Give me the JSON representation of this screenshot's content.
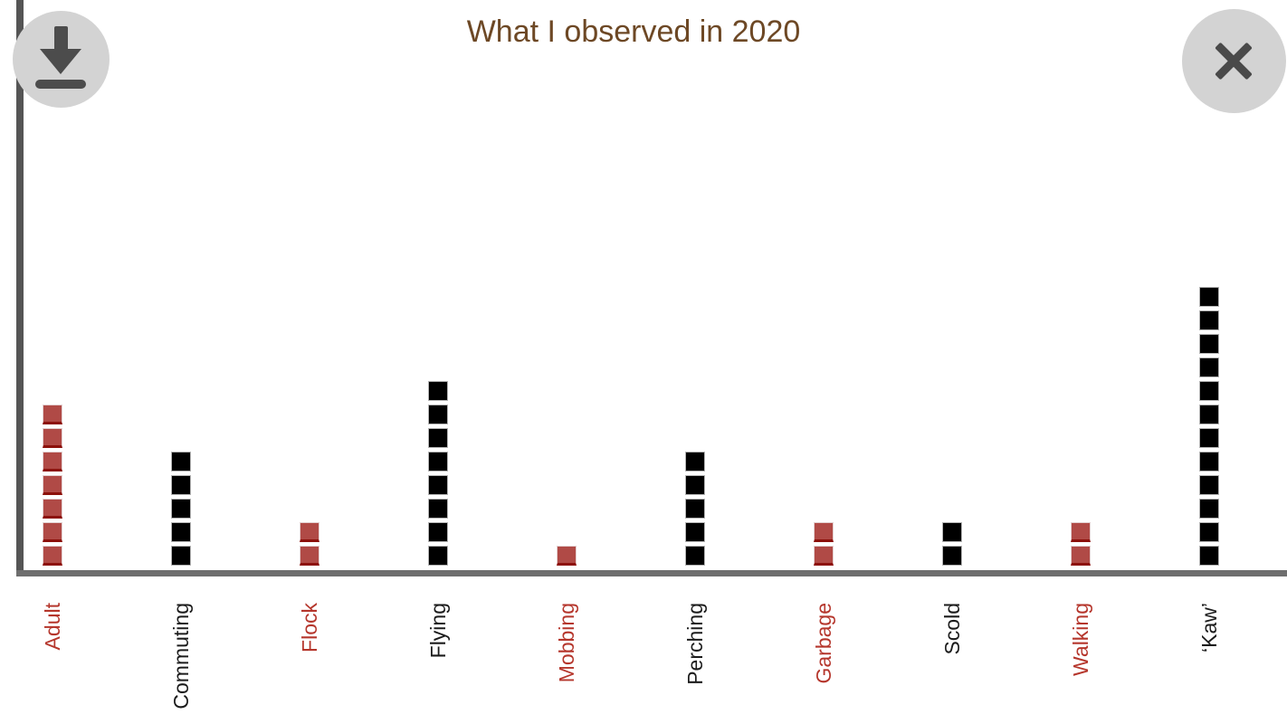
{
  "window": {
    "background": "#ffffff"
  },
  "buttons": {
    "download": {
      "icon": "download-icon",
      "circle_color": "#d3d3d3",
      "glyph_color": "#4c4c4c"
    },
    "close": {
      "icon": "close-icon",
      "circle_color": "#d3d3d3",
      "glyph_color": "#4a4a4a"
    }
  },
  "chart_data": {
    "type": "bar",
    "subtype": "waffle-pictograph",
    "title": "What I observed in 2020",
    "title_color": "#6d4825",
    "categories": [
      "Adult",
      "Commuting",
      "Flock",
      "Flying",
      "Mobbing",
      "Perching",
      "Garbage",
      "Scold",
      "Walking",
      "‘Kaw’"
    ],
    "values": [
      7,
      5,
      2,
      8,
      1,
      5,
      2,
      2,
      2,
      12
    ],
    "category_groups": [
      "red",
      "black",
      "red",
      "black",
      "red",
      "black",
      "red",
      "black",
      "red",
      "black"
    ],
    "palette": {
      "red": {
        "fill": "#b04a46",
        "edge": "#e3d0d0",
        "bottom": "#8c110c",
        "label": "#b5362c"
      },
      "black": {
        "fill": "#000000",
        "edge": "#b3b3b3",
        "bottom": "#000000",
        "label": "#1b1b1b"
      }
    },
    "unit_per_square": 1,
    "xlabel": "",
    "ylabel": "",
    "ylim": [
      0,
      12
    ],
    "grid": false,
    "legend": false,
    "axis_colors": {
      "x_line": "#6e6e6e",
      "y_line": "#555555"
    },
    "tick_label_rotation_deg": 90
  }
}
